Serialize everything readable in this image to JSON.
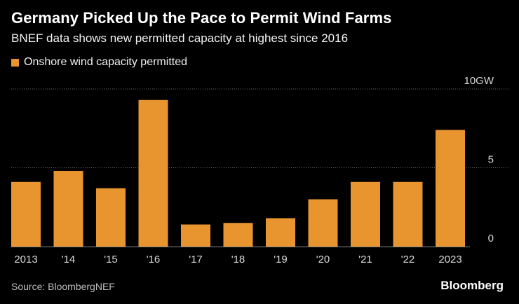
{
  "header": {
    "title": "Germany Picked Up the Pace to Permit Wind Farms",
    "subtitle": "BNEF data shows new permitted capacity at highest since 2016"
  },
  "legend": {
    "label": "Onshore wind capacity permitted"
  },
  "footer": {
    "source": "Source: BloombergNEF",
    "brand": "Bloomberg"
  },
  "colors": {
    "bar": "#e8952f",
    "background": "#000000",
    "gridline": "#6e6e6e",
    "tick_text": "#d9d9d9",
    "axis": "#8a8a8a"
  },
  "chart_data": {
    "type": "bar",
    "title": "Germany Picked Up the Pace to Permit Wind Farms",
    "subtitle": "BNEF data shows new permitted capacity at highest since 2016",
    "xlabel": "",
    "ylabel": "",
    "categories": [
      "2013",
      "'14",
      "'15",
      "'16",
      "'17",
      "'18",
      "'19",
      "'20",
      "'21",
      "'22",
      "2023"
    ],
    "series": [
      {
        "name": "Onshore wind capacity permitted",
        "values": [
          4.1,
          4.8,
          3.7,
          9.3,
          1.4,
          1.5,
          1.8,
          3.0,
          4.1,
          4.1,
          7.4
        ]
      }
    ],
    "ylim": [
      0,
      10
    ],
    "yticks": [
      {
        "value": 0,
        "label": "0"
      },
      {
        "value": 5,
        "label": "5"
      },
      {
        "value": 10,
        "label": "10GW"
      }
    ],
    "grid": true,
    "legend_position": "top-left"
  }
}
